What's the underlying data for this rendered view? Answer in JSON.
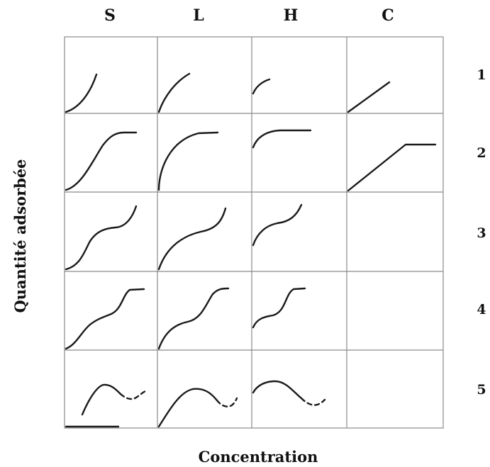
{
  "columns": [
    "S",
    "L",
    "H",
    "C"
  ],
  "rows": [
    "1",
    "2",
    "3",
    "4",
    "5"
  ],
  "y_axis_label": "Quantité adsorbée",
  "x_axis_label": "Concentration"
}
